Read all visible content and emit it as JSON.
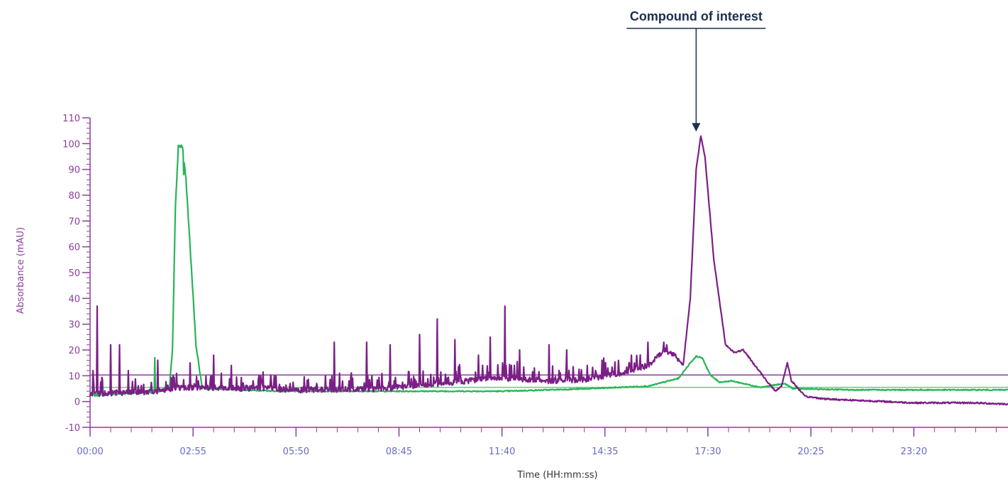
{
  "chart_data": {
    "type": "line",
    "title": "",
    "xlabel": "Time (HH:mm:ss)",
    "ylabel": "Absorbance (mAU)",
    "x_unit": "seconds",
    "xlim": [
      0,
      1560
    ],
    "ylim": [
      -10,
      110
    ],
    "yticks": [
      -10,
      0,
      10,
      20,
      30,
      40,
      50,
      60,
      70,
      80,
      90,
      100,
      110
    ],
    "xtick_labels": [
      "00:00",
      "02:55",
      "05:50",
      "08:45",
      "11:40",
      "14:35",
      "17:30",
      "20:25",
      "23:20"
    ],
    "xtick_values": [
      0,
      175,
      350,
      525,
      700,
      875,
      1050,
      1225,
      1400
    ],
    "grid": false,
    "legend": "none",
    "colors": {
      "purple": "#7b1f86",
      "green": "#27b457",
      "axis": "#8a3f9a",
      "annotation": "#1b2f4f"
    },
    "reference_lines": [
      {
        "y": 10.3,
        "color": "#8b3fa0"
      },
      {
        "y": 5.5,
        "color": "#6fcf8a"
      }
    ],
    "annotation": {
      "text": "Compound of interest",
      "x": 1030,
      "y": 103
    },
    "series": [
      {
        "color": "#7b1f86",
        "baseline": [
          [
            0,
            3
          ],
          [
            120,
            4
          ],
          [
            150,
            5.5
          ],
          [
            300,
            5
          ],
          [
            350,
            4.5
          ],
          [
            500,
            5
          ],
          [
            600,
            7
          ],
          [
            680,
            9
          ],
          [
            720,
            9
          ],
          [
            780,
            8
          ],
          [
            840,
            8.5
          ],
          [
            900,
            11
          ],
          [
            950,
            14
          ],
          [
            975,
            20
          ],
          [
            995,
            18
          ],
          [
            1008,
            14
          ],
          [
            1020,
            40
          ],
          [
            1030,
            90
          ],
          [
            1038,
            103
          ],
          [
            1045,
            95
          ],
          [
            1060,
            55
          ],
          [
            1080,
            22
          ],
          [
            1095,
            19
          ],
          [
            1110,
            20
          ],
          [
            1130,
            14
          ],
          [
            1150,
            8
          ],
          [
            1165,
            4
          ],
          [
            1175,
            6
          ],
          [
            1185,
            15
          ],
          [
            1192,
            8
          ],
          [
            1200,
            6
          ],
          [
            1215,
            2
          ],
          [
            1250,
            1
          ],
          [
            1300,
            0.5
          ],
          [
            1400,
            -0.5
          ],
          [
            1500,
            -0.5
          ],
          [
            1560,
            -1
          ]
        ],
        "spikes": [
          [
            5,
            12
          ],
          [
            12,
            37
          ],
          [
            35,
            22
          ],
          [
            50,
            22
          ],
          [
            65,
            12
          ],
          [
            115,
            16
          ],
          [
            170,
            15
          ],
          [
            210,
            18
          ],
          [
            240,
            14
          ],
          [
            290,
            10
          ],
          [
            340,
            7
          ],
          [
            400,
            10
          ],
          [
            415,
            23
          ],
          [
            440,
            8
          ],
          [
            470,
            23
          ],
          [
            510,
            22
          ],
          [
            560,
            26
          ],
          [
            590,
            32
          ],
          [
            620,
            24
          ],
          [
            660,
            18
          ],
          [
            680,
            25
          ],
          [
            705,
            37
          ],
          [
            730,
            20
          ],
          [
            755,
            13
          ],
          [
            780,
            22
          ],
          [
            810,
            20
          ],
          [
            845,
            14
          ],
          [
            870,
            16
          ],
          [
            880,
            13
          ],
          [
            920,
            18
          ],
          [
            925,
            15
          ],
          [
            948,
            23
          ],
          [
            958,
            16
          ],
          [
            975,
            23
          ],
          [
            980,
            22
          ]
        ]
      },
      {
        "color": "#27b457",
        "baseline": [
          [
            0,
            2.5
          ],
          [
            120,
            4
          ],
          [
            135,
            6
          ],
          [
            140,
            20
          ],
          [
            145,
            75
          ],
          [
            150,
            99
          ],
          [
            157,
            99
          ],
          [
            163,
            86
          ],
          [
            170,
            60
          ],
          [
            180,
            22
          ],
          [
            190,
            6
          ],
          [
            200,
            5
          ],
          [
            320,
            4
          ],
          [
            500,
            4
          ],
          [
            700,
            4
          ],
          [
            850,
            5
          ],
          [
            950,
            6
          ],
          [
            1000,
            9
          ],
          [
            1020,
            15
          ],
          [
            1030,
            17.5
          ],
          [
            1040,
            17
          ],
          [
            1055,
            10
          ],
          [
            1070,
            7.5
          ],
          [
            1090,
            8
          ],
          [
            1110,
            7
          ],
          [
            1140,
            5.5
          ],
          [
            1180,
            7
          ],
          [
            1195,
            5
          ],
          [
            1300,
            4.5
          ],
          [
            1400,
            4.5
          ],
          [
            1560,
            4.5
          ]
        ],
        "spikes": [
          [
            110,
            17
          ],
          [
            159,
            88
          ],
          [
            1010,
            12
          ]
        ]
      }
    ]
  }
}
